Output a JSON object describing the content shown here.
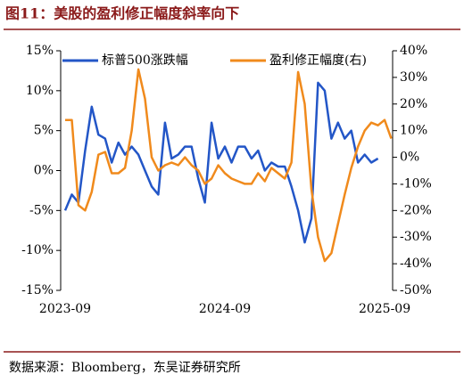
{
  "chart_data": {
    "type": "line",
    "title": "图11：美股的盈利修正幅度斜率向下",
    "source": "数据来源：Bloomberg，东吴证券研究所",
    "categories": [
      "2023-09",
      null,
      null,
      null,
      null,
      null,
      null,
      null,
      null,
      null,
      null,
      null,
      null,
      null,
      null,
      null,
      null,
      null,
      null,
      null,
      null,
      null,
      null,
      null,
      "2024-09",
      null,
      null,
      null,
      null,
      null,
      null,
      null,
      null,
      null,
      null,
      null,
      null,
      null,
      null,
      null,
      null,
      null,
      null,
      null,
      null,
      null,
      null,
      null,
      "2025-09",
      null
    ],
    "series": [
      {
        "name": "标普500涨跌幅",
        "color": "#2356c7",
        "axis": "y",
        "values": [
          -5,
          -3,
          -4,
          2.5,
          8,
          4.5,
          4,
          1,
          3.5,
          2,
          3,
          2,
          0,
          -2,
          -3,
          6,
          1.5,
          2,
          3,
          3,
          -1,
          -4,
          6,
          1.5,
          3,
          1,
          3,
          3,
          1.5,
          2.5,
          0,
          1,
          0.5,
          0.5,
          -2,
          -5,
          -9,
          -6,
          11,
          10,
          4,
          6,
          4,
          5,
          1,
          2,
          1,
          1.5,
          null,
          null
        ]
      },
      {
        "name": "盈利修正幅度(右)",
        "color": "#f08a1c",
        "axis": "y2",
        "values": [
          14,
          14,
          -18,
          -20,
          -13,
          1,
          2,
          -6,
          -6,
          -4,
          10,
          33,
          22,
          0,
          -5,
          -3,
          -2,
          -3,
          0,
          -3,
          -5,
          -10,
          -8,
          -3,
          -6,
          -8,
          -9,
          -10,
          -10,
          -6,
          -9,
          -4,
          -6,
          -8,
          -2,
          32,
          20,
          -12,
          -30,
          -39,
          -36,
          -25,
          -14,
          -4,
          4,
          10,
          13,
          12,
          14,
          7
        ]
      }
    ],
    "ylim": [
      -15,
      15
    ],
    "yticks": [
      {
        "value": 15,
        "label": "15%"
      },
      {
        "value": 10,
        "label": "10%"
      },
      {
        "value": 5,
        "label": "5%"
      },
      {
        "value": 0,
        "label": "0%"
      },
      {
        "value": -5,
        "label": "-5%"
      },
      {
        "value": -10,
        "label": "-10%"
      },
      {
        "value": -15,
        "label": "-15%"
      }
    ],
    "y2lim": [
      -50,
      40
    ],
    "y2ticks": [
      {
        "value": 40,
        "label": "40%"
      },
      {
        "value": 30,
        "label": "30%"
      },
      {
        "value": 20,
        "label": "20%"
      },
      {
        "value": 10,
        "label": "10%"
      },
      {
        "value": 0,
        "label": "0%"
      },
      {
        "value": -10,
        "label": "-10%"
      },
      {
        "value": -20,
        "label": "-20%"
      },
      {
        "value": -30,
        "label": "-30%"
      },
      {
        "value": -40,
        "label": "-40%"
      },
      {
        "value": -50,
        "label": "-50%"
      }
    ],
    "legend": "top-left"
  }
}
